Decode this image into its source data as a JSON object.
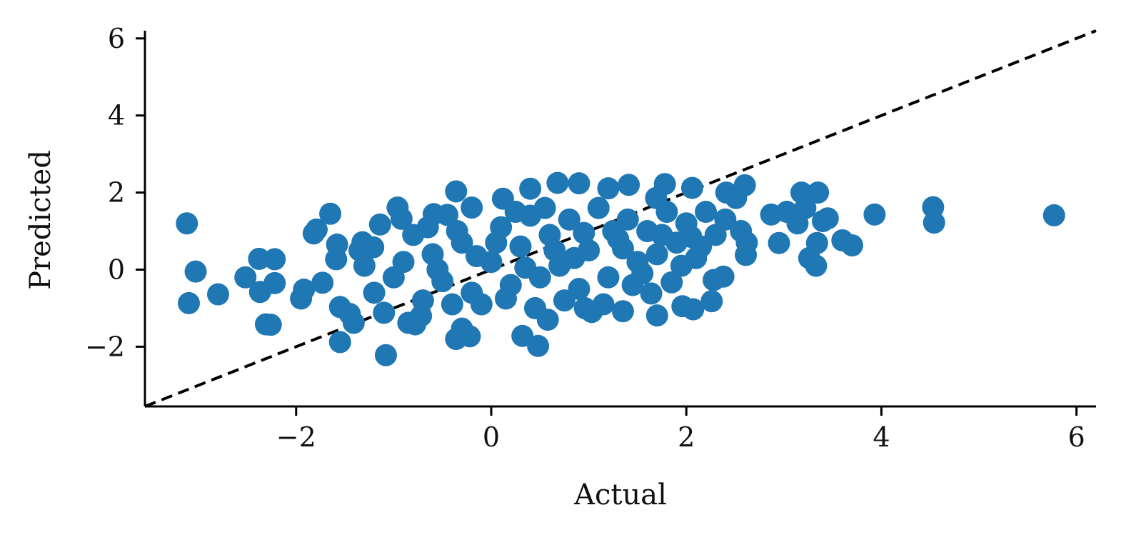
{
  "chart_data": {
    "type": "scatter",
    "title": "",
    "xlabel": "Actual",
    "ylabel": "Predicted",
    "xlim": [
      -3.55,
      6.2
    ],
    "ylim": [
      -3.55,
      6.2
    ],
    "xticks": [
      -2,
      0,
      2,
      4,
      6
    ],
    "yticks": [
      -2,
      0,
      2,
      4,
      6
    ],
    "xtick_labels": [
      "−2",
      "0",
      "2",
      "4",
      "6"
    ],
    "ytick_labels": [
      "−2",
      "0",
      "2",
      "4",
      "6"
    ],
    "grid": false,
    "reference_line": {
      "style": "dashed",
      "color": "#000000",
      "slope": 1,
      "intercept": 0
    },
    "series": [
      {
        "color": "#1f77b4",
        "points": [
          [
            -3.12,
            1.2
          ],
          [
            -3.03,
            -0.05
          ],
          [
            -3.1,
            -0.87
          ],
          [
            -2.8,
            -0.64
          ],
          [
            -2.52,
            -0.2
          ],
          [
            -2.38,
            0.28
          ],
          [
            -2.22,
            0.27
          ],
          [
            -2.37,
            -0.58
          ],
          [
            -2.22,
            -0.35
          ],
          [
            -2.31,
            -1.42
          ],
          [
            -2.26,
            -1.43
          ],
          [
            -1.95,
            -0.75
          ],
          [
            -1.92,
            -0.52
          ],
          [
            -1.82,
            0.94
          ],
          [
            -1.79,
            1.04
          ],
          [
            -1.73,
            -0.34
          ],
          [
            -1.65,
            1.45
          ],
          [
            -1.58,
            0.65
          ],
          [
            -1.59,
            0.27
          ],
          [
            -1.55,
            -0.97
          ],
          [
            -1.55,
            -1.88
          ],
          [
            -1.45,
            -1.15
          ],
          [
            -1.41,
            -1.38
          ],
          [
            -1.35,
            0.5
          ],
          [
            -1.32,
            0.71
          ],
          [
            -1.21,
            0.58
          ],
          [
            -1.14,
            1.17
          ],
          [
            -1.1,
            -1.12
          ],
          [
            -1.08,
            -2.22
          ],
          [
            -0.96,
            1.61
          ],
          [
            -0.92,
            1.32
          ],
          [
            -0.85,
            -1.38
          ],
          [
            -0.78,
            -1.42
          ],
          [
            -0.72,
            -1.2
          ],
          [
            -0.59,
            1.44
          ],
          [
            -0.45,
            1.42
          ],
          [
            -0.36,
            2.03
          ],
          [
            -0.36,
            -1.8
          ],
          [
            -0.3,
            -1.53
          ],
          [
            -0.22,
            -1.73
          ],
          [
            -0.2,
            1.61
          ],
          [
            0.12,
            1.84
          ],
          [
            0.32,
            -1.72
          ],
          [
            0.4,
            2.1
          ],
          [
            0.48,
            -1.98
          ],
          [
            0.58,
            -1.3
          ],
          [
            0.68,
            2.25
          ],
          [
            0.9,
            2.24
          ],
          [
            0.96,
            -1.0
          ],
          [
            1.03,
            -1.1
          ],
          [
            1.2,
            2.11
          ],
          [
            1.35,
            -1.08
          ],
          [
            1.41,
            2.2
          ],
          [
            1.64,
            -0.62
          ],
          [
            1.69,
            1.86
          ],
          [
            1.7,
            -1.19
          ],
          [
            1.78,
            2.22
          ],
          [
            1.85,
            -0.33
          ],
          [
            1.96,
            -0.95
          ],
          [
            2.06,
            2.12
          ],
          [
            2.07,
            -1.03
          ],
          [
            2.26,
            -0.82
          ],
          [
            2.28,
            -0.27
          ],
          [
            2.38,
            -0.18
          ],
          [
            2.41,
            2.0
          ],
          [
            2.51,
            1.86
          ],
          [
            2.56,
            1.0
          ],
          [
            2.6,
            2.19
          ],
          [
            2.62,
            0.7
          ],
          [
            2.61,
            0.38
          ],
          [
            2.87,
            1.43
          ],
          [
            2.95,
            0.69
          ],
          [
            3.03,
            1.5
          ],
          [
            3.14,
            1.2
          ],
          [
            3.18,
            2.0
          ],
          [
            3.22,
            1.6
          ],
          [
            3.26,
            0.3
          ],
          [
            3.33,
            0.1
          ],
          [
            3.34,
            0.69
          ],
          [
            3.35,
            2.0
          ],
          [
            3.4,
            1.26
          ],
          [
            3.45,
            1.33
          ],
          [
            3.6,
            0.76
          ],
          [
            3.7,
            0.63
          ],
          [
            3.93,
            1.43
          ],
          [
            4.53,
            1.62
          ],
          [
            4.54,
            1.22
          ],
          [
            5.77,
            1.41
          ],
          [
            -0.8,
            0.9
          ],
          [
            -0.6,
            0.4
          ],
          [
            -0.5,
            -0.3
          ],
          [
            -0.3,
            0.7
          ],
          [
            -0.2,
            -0.6
          ],
          [
            0.0,
            0.2
          ],
          [
            0.1,
            1.1
          ],
          [
            0.2,
            -0.4
          ],
          [
            0.3,
            0.6
          ],
          [
            0.4,
            1.4
          ],
          [
            0.5,
            -0.2
          ],
          [
            0.6,
            0.9
          ],
          [
            0.7,
            0.1
          ],
          [
            0.8,
            1.3
          ],
          [
            0.9,
            -0.5
          ],
          [
            1.0,
            0.5
          ],
          [
            1.1,
            1.6
          ],
          [
            1.2,
            -0.2
          ],
          [
            1.3,
            0.8
          ],
          [
            1.4,
            1.3
          ],
          [
            1.5,
            0.2
          ],
          [
            1.6,
            1.0
          ],
          [
            1.7,
            0.4
          ],
          [
            1.8,
            1.5
          ],
          [
            1.9,
            0.7
          ],
          [
            2.0,
            1.2
          ],
          [
            2.1,
            0.3
          ],
          [
            2.2,
            1.5
          ],
          [
            2.3,
            0.9
          ],
          [
            2.4,
            1.3
          ],
          [
            -1.0,
            -0.2
          ],
          [
            -0.9,
            0.2
          ],
          [
            -0.7,
            -0.8
          ],
          [
            -0.4,
            -0.9
          ],
          [
            -0.1,
            -0.9
          ],
          [
            0.15,
            -0.75
          ],
          [
            0.45,
            -1.0
          ],
          [
            0.75,
            -0.8
          ],
          [
            1.15,
            -0.9
          ],
          [
            1.45,
            -0.4
          ],
          [
            -1.2,
            -0.6
          ],
          [
            -1.3,
            0.1
          ],
          [
            -0.65,
            1.1
          ],
          [
            0.05,
            0.7
          ],
          [
            0.25,
            1.5
          ],
          [
            0.55,
            1.6
          ],
          [
            0.85,
            0.3
          ],
          [
            1.25,
            1.0
          ],
          [
            1.55,
            -0.1
          ],
          [
            2.15,
            0.6
          ],
          [
            -0.15,
            0.35
          ],
          [
            0.35,
            0.05
          ],
          [
            0.65,
            0.5
          ],
          [
            0.95,
            0.95
          ],
          [
            1.35,
            0.55
          ],
          [
            1.75,
            0.9
          ],
          [
            2.05,
            0.85
          ],
          [
            -0.55,
            0.0
          ],
          [
            -0.35,
            1.0
          ],
          [
            1.95,
            0.1
          ]
        ]
      }
    ]
  }
}
